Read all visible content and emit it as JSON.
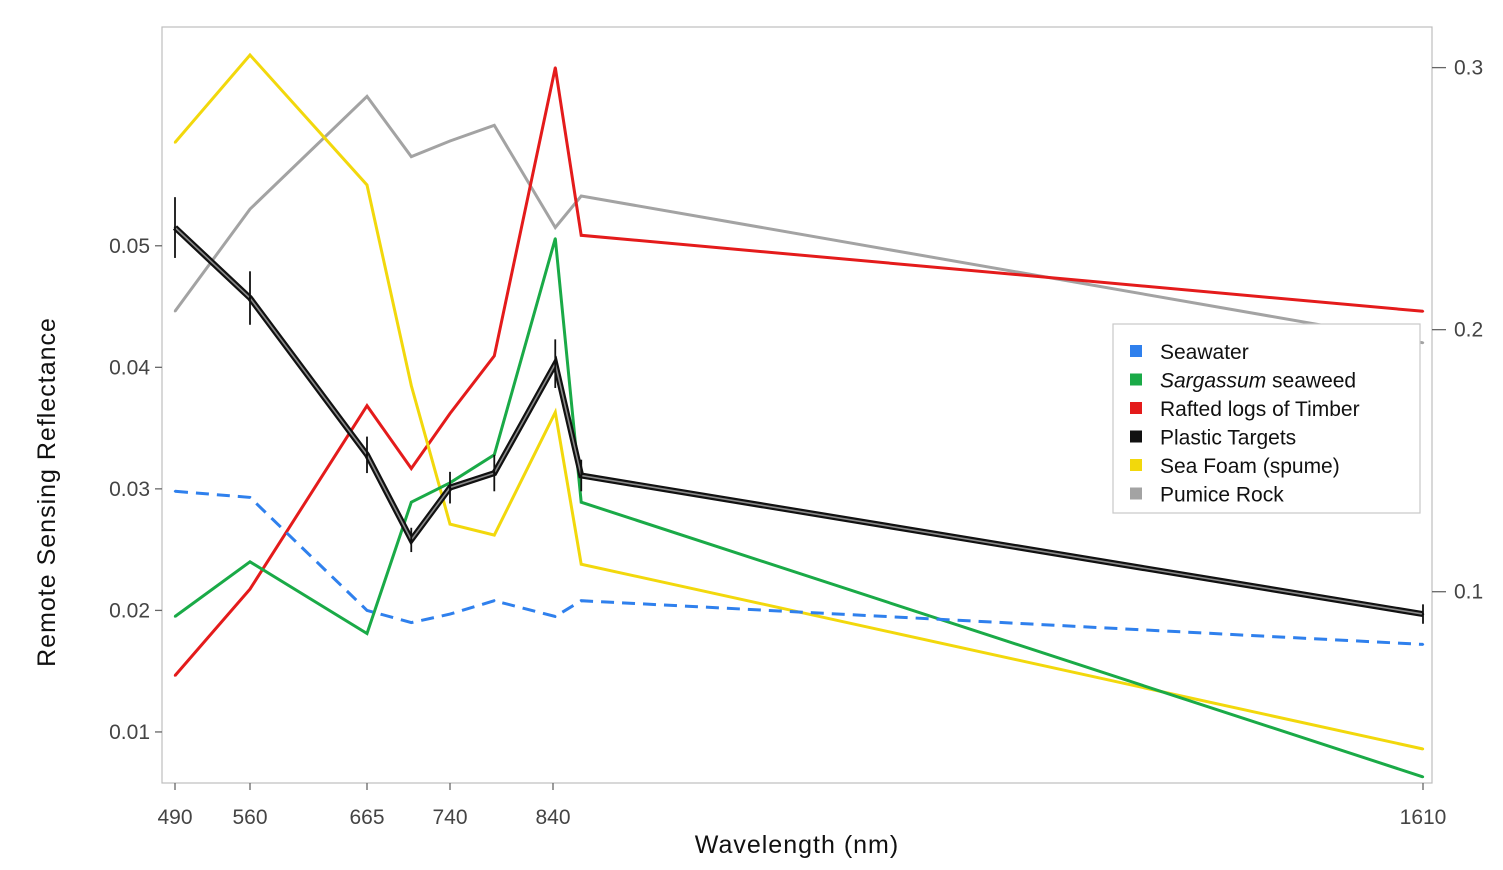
{
  "chart_data": {
    "type": "line",
    "xlabel": "Wavelength (nm)",
    "ylabel": "Remote Sensing Reflectance",
    "x_ticks": [
      "490",
      "560",
      "665",
      "740",
      "840",
      "1610"
    ],
    "x_tick_values": [
      490,
      560,
      665,
      740,
      840,
      1610
    ],
    "x": [
      490,
      560,
      665,
      705,
      740,
      783,
      842,
      865,
      1610
    ],
    "xlim": [
      480,
      1620
    ],
    "y_left_ticks": [
      "0.01",
      "0.02",
      "0.03",
      "0.04",
      "0.05"
    ],
    "y_left_tick_values": [
      0.01,
      0.02,
      0.03,
      0.04,
      0.05
    ],
    "ylim_left": [
      0.0058,
      0.068
    ],
    "y_right_ticks": [
      "0.1",
      "0.2",
      "0.3"
    ],
    "y_right_tick_values": [
      0.1,
      0.2,
      0.3
    ],
    "ylim_right": [
      0.027,
      0.3155
    ],
    "grid": false,
    "legend_position": "center-right",
    "series": [
      {
        "name": "Seawater",
        "axis": "left",
        "color": "#2f80ed",
        "dashed": true,
        "values": [
          0.0298,
          0.0293,
          0.02,
          0.019,
          0.0197,
          0.0208,
          0.0195,
          0.0208,
          0.0172
        ]
      },
      {
        "name": "Sargassum seaweed",
        "name_italic": "Sargassum",
        "name_rest": " seaweed",
        "axis": "left",
        "color": "#1aaa47",
        "values": [
          0.0195,
          0.024,
          0.0181,
          0.0289,
          0.0305,
          0.0328,
          0.0506,
          0.0289,
          0.0063
        ]
      },
      {
        "name": "Rafted logs of Timber",
        "axis": "right",
        "color": "#e41b1b",
        "values": [
          0.068,
          0.101,
          0.171,
          0.147,
          0.168,
          0.19,
          0.3,
          0.236,
          0.207
        ]
      },
      {
        "name": "Plastic Targets",
        "axis": "left",
        "color": "#111111",
        "values": [
          0.0515,
          0.0457,
          0.0328,
          0.0258,
          0.0301,
          0.0313,
          0.0403,
          0.0311,
          0.0197
        ],
        "error": [
          0.0025,
          0.0022,
          0.0015,
          0.001,
          0.0013,
          0.0015,
          0.002,
          0.0013,
          0.0008
        ]
      },
      {
        "name": "Sea Foam (spume)",
        "axis": "left",
        "color": "#f2d80c",
        "values": [
          0.0585,
          0.0657,
          0.055,
          0.0385,
          0.0271,
          0.0262,
          0.0363,
          0.0238,
          0.0086
        ]
      },
      {
        "name": "Pumice Rock",
        "axis": "right",
        "color": "#a3a3a3",
        "values": [
          0.207,
          0.246,
          0.289,
          0.266,
          0.272,
          0.278,
          0.239,
          0.251,
          0.195
        ]
      }
    ]
  }
}
